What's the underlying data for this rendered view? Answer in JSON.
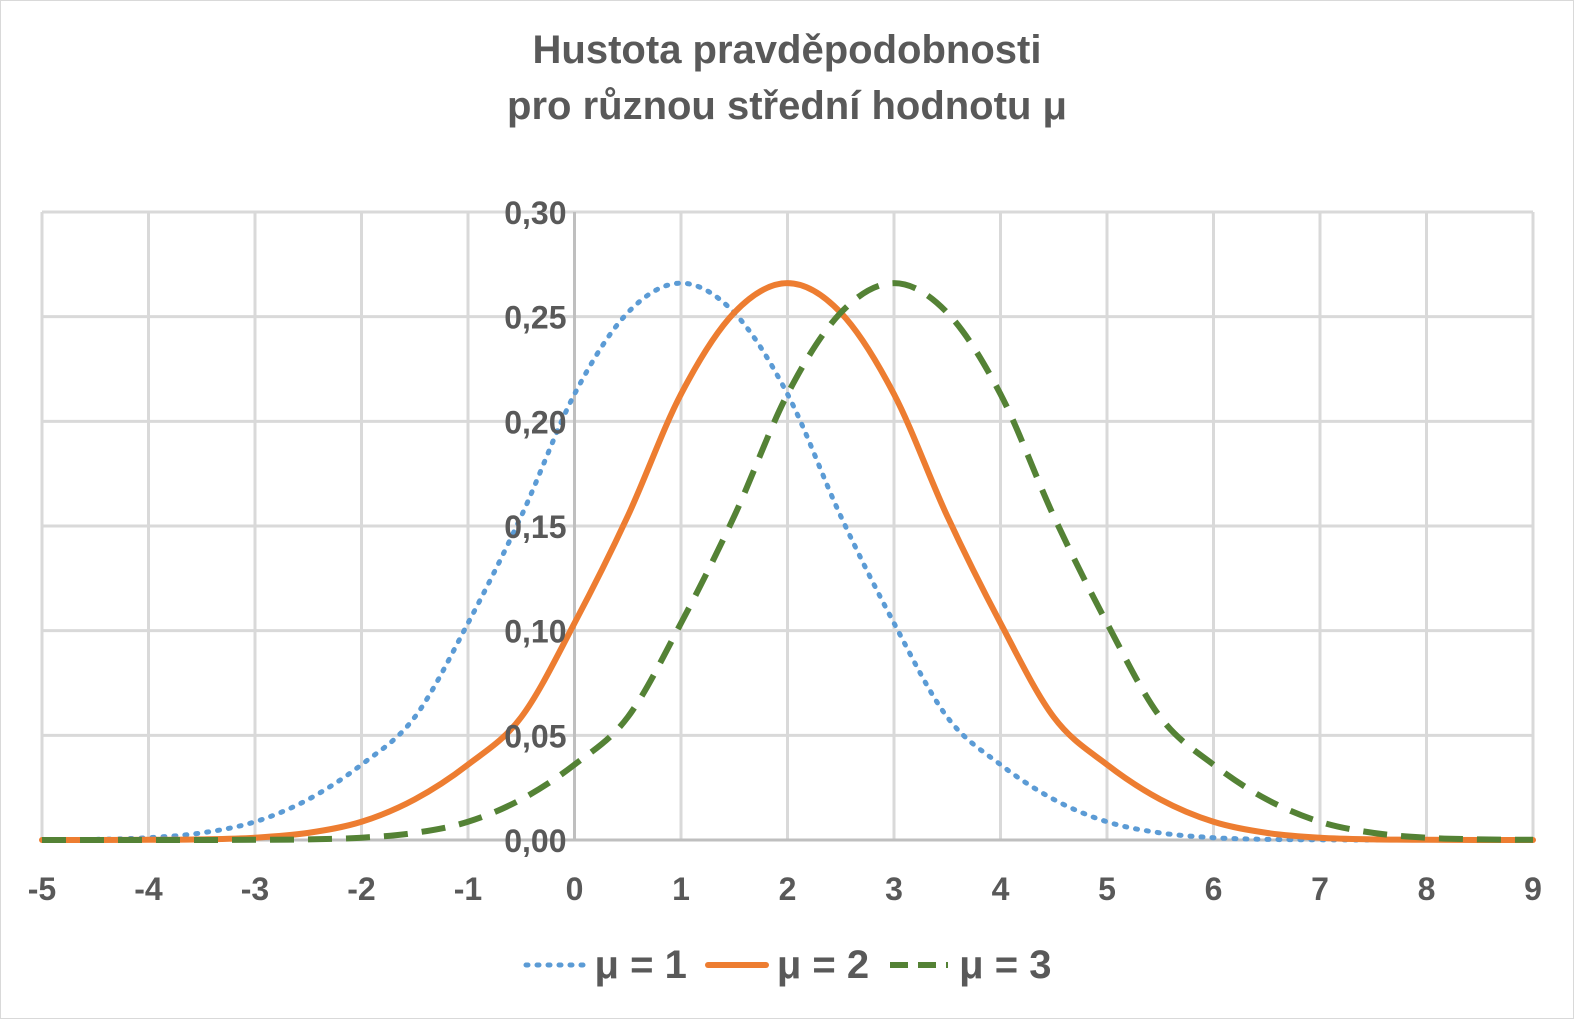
{
  "chart_data": {
    "type": "line",
    "title_lines": [
      "Hustota pravděpodobnosti",
      "pro různou střední hodnotu μ"
    ],
    "xlim": [
      -5,
      9
    ],
    "ylim": [
      0,
      0.3
    ],
    "x_ticks": [
      "-5",
      "-4",
      "-3",
      "-2",
      "-1",
      "0",
      "1",
      "2",
      "3",
      "4",
      "5",
      "6",
      "7",
      "8",
      "9"
    ],
    "y_ticks": [
      "0,00",
      "0,05",
      "0,10",
      "0,15",
      "0,20",
      "0,25",
      "0,30"
    ],
    "grid": true,
    "legend_position": "bottom",
    "x": [
      -5,
      -4.5,
      -4,
      -3.5,
      -3,
      -2.5,
      -2,
      -1.5,
      -1,
      -0.5,
      0,
      0.5,
      1,
      1.5,
      2,
      2.5,
      3,
      3.5,
      4,
      4.5,
      5,
      5.5,
      6,
      6.5,
      7,
      7.5,
      8,
      8.5,
      9
    ],
    "series": [
      {
        "name": "μ = 1",
        "color": "#5b9bd5",
        "style": "dotted",
        "values": [
          0.0,
          0.0003,
          0.0011,
          0.0034,
          0.0087,
          0.0194,
          0.036,
          0.0587,
          0.1036,
          0.1547,
          0.213,
          0.2519,
          0.266,
          0.2519,
          0.213,
          0.1547,
          0.1036,
          0.0587,
          0.036,
          0.0194,
          0.0087,
          0.0034,
          0.0011,
          0.0003,
          0.0001,
          0.0,
          0.0,
          0.0,
          0.0
        ]
      },
      {
        "name": "μ = 2",
        "color": "#ed7d31",
        "style": "solid",
        "values": [
          0.0,
          0.0,
          0.0001,
          0.0003,
          0.0011,
          0.0034,
          0.0087,
          0.0194,
          0.036,
          0.0587,
          0.1036,
          0.1547,
          0.213,
          0.2519,
          0.266,
          0.2519,
          0.213,
          0.1547,
          0.1036,
          0.0587,
          0.036,
          0.0194,
          0.0087,
          0.0034,
          0.0011,
          0.0003,
          0.0001,
          0.0,
          0.0
        ]
      },
      {
        "name": "μ = 3",
        "color": "#548235",
        "style": "dashed",
        "values": [
          0.0,
          0.0,
          0.0,
          0.0,
          0.0001,
          0.0003,
          0.0011,
          0.0034,
          0.0087,
          0.0194,
          0.036,
          0.0587,
          0.1036,
          0.1547,
          0.213,
          0.2519,
          0.266,
          0.2519,
          0.213,
          0.1547,
          0.1036,
          0.0587,
          0.036,
          0.0194,
          0.0087,
          0.0034,
          0.0011,
          0.0003,
          0.0001
        ]
      }
    ]
  }
}
